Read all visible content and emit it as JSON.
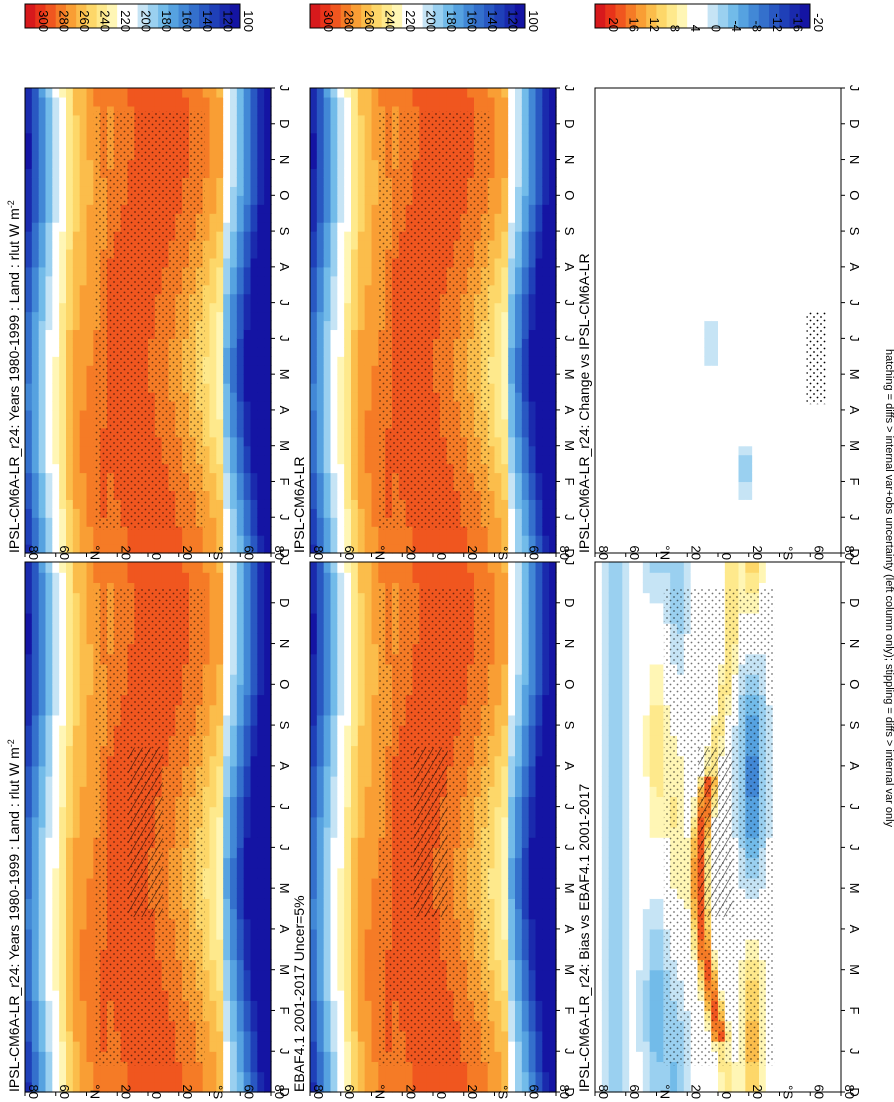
{
  "footnote": "hatching = diffs > internal var+obs uncertainty (left column only); stippling = diffs > internal var only",
  "chart_data": [
    {
      "type": "heatmap",
      "title": "IPSL-CM6A-LR_r24: Years 1980-1999 : Land : rlut W m",
      "units_superscript": "-2",
      "x_ticks": [
        "D",
        "J",
        "F",
        "M",
        "A",
        "M",
        "J",
        "J",
        "A",
        "S",
        "O",
        "N",
        "D",
        "J"
      ],
      "y_ticks": [
        "80",
        "60",
        "°N",
        "20",
        "0",
        "20",
        "°S",
        "60",
        "80"
      ],
      "colorbar": {
        "labels": [
          "300",
          "280",
          "260",
          "240",
          "220",
          "200",
          "180",
          "160",
          "140",
          "120",
          "100"
        ]
      },
      "field": "mean",
      "stipple": true,
      "hatch": false
    },
    {
      "type": "heatmap",
      "title": "IPSL-CM6A-LR_r24: Years 1980-1999 : Land : rlut W m",
      "units_superscript": "-2",
      "x_ticks": [
        "D",
        "J",
        "F",
        "M",
        "A",
        "M",
        "J",
        "J",
        "A",
        "S",
        "O",
        "N",
        "D",
        "J"
      ],
      "y_ticks": [
        "80",
        "60",
        "°N",
        "20",
        "0",
        "20",
        "°S",
        "60",
        "80"
      ],
      "colorbar": {
        "labels": [
          "300",
          "280",
          "260",
          "240",
          "220",
          "200",
          "180",
          "160",
          "140",
          "120",
          "100"
        ]
      },
      "field": "mean",
      "stipple": true,
      "hatch": true
    },
    {
      "type": "heatmap",
      "title": "IPSL-CM6A-LR",
      "x_ticks": [
        "D",
        "J",
        "F",
        "M",
        "A",
        "M",
        "J",
        "J",
        "A",
        "S",
        "O",
        "N",
        "D",
        "J"
      ],
      "y_ticks": [
        "80",
        "60",
        "°N",
        "20",
        "0",
        "20",
        "°S",
        "60",
        "80"
      ],
      "colorbar": {
        "labels": [
          "300",
          "280",
          "260",
          "240",
          "220",
          "200",
          "180",
          "160",
          "140",
          "120",
          "100"
        ]
      },
      "field": "mean",
      "stipple": true,
      "hatch": false
    },
    {
      "type": "heatmap",
      "title": "EBAF4.1 2001-2017 Uncer=5%",
      "x_ticks": [
        "D",
        "J",
        "F",
        "M",
        "A",
        "M",
        "J",
        "J",
        "A",
        "S",
        "O",
        "N",
        "D",
        "J"
      ],
      "y_ticks": [
        "80",
        "60",
        "°N",
        "20",
        "0",
        "20",
        "°S",
        "60",
        "80"
      ],
      "colorbar": {
        "labels": [
          "300",
          "280",
          "260",
          "240",
          "220",
          "200",
          "180",
          "160",
          "140",
          "120",
          "100"
        ]
      },
      "field": "mean",
      "stipple": true,
      "hatch": true
    },
    {
      "type": "heatmap",
      "title": "IPSL-CM6A-LR_r24: Change vs IPSL-CM6A-LR",
      "x_ticks": [
        "D",
        "J",
        "F",
        "M",
        "A",
        "M",
        "J",
        "J",
        "A",
        "S",
        "O",
        "N",
        "D",
        "J"
      ],
      "y_ticks": [
        "80",
        "60",
        "°N",
        "20",
        "0",
        "20",
        "°S",
        "60",
        "80"
      ],
      "colorbar": {
        "labels": [
          "20",
          "16",
          "12",
          "8",
          "4",
          "0",
          "-4",
          "-8",
          "-12",
          "-16",
          "-20"
        ]
      },
      "field": "change",
      "stipple": true,
      "hatch": false
    },
    {
      "type": "heatmap",
      "title": "IPSL-CM6A-LR_r24: Bias vs EBAF4.1 2001-2017",
      "x_ticks": [
        "D",
        "J",
        "F",
        "M",
        "A",
        "M",
        "J",
        "J",
        "A",
        "S",
        "O",
        "N",
        "D",
        "J"
      ],
      "y_ticks": [
        "80",
        "60",
        "°N",
        "20",
        "0",
        "20",
        "°S",
        "60",
        "80"
      ],
      "colorbar": {
        "labels": [
          "20",
          "16",
          "12",
          "8",
          "4",
          "0",
          "-4",
          "-8",
          "-12",
          "-16",
          "-20"
        ]
      },
      "field": "bias",
      "stipple": true,
      "hatch": true
    }
  ]
}
